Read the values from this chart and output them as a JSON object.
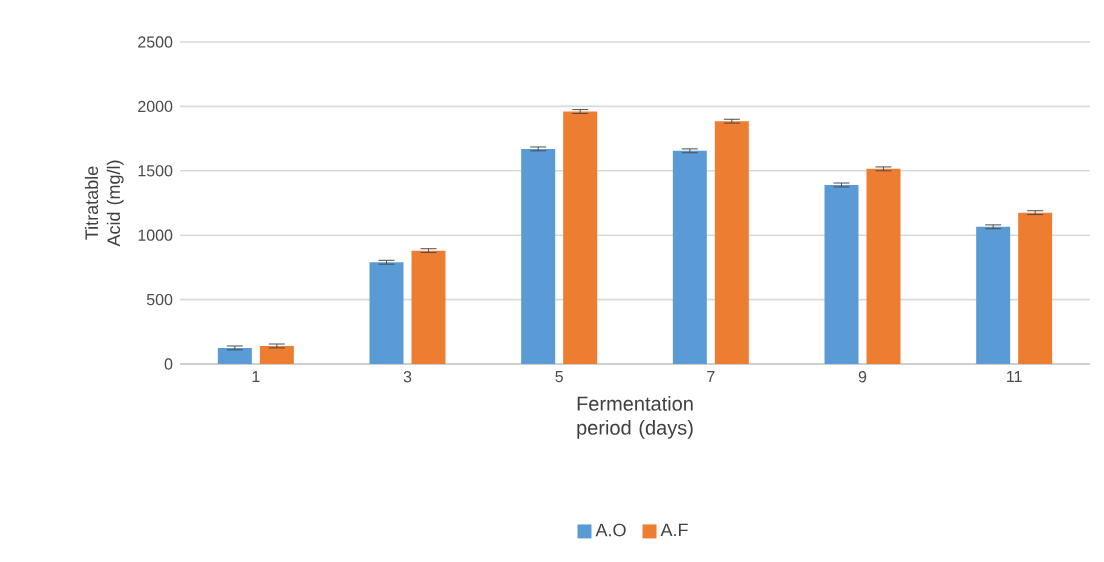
{
  "chart_data": {
    "type": "bar",
    "xlabel": "Fermentation period (days)",
    "ylabel": "Titratable Acid (mg/l)",
    "categories": [
      "1",
      "3",
      "5",
      "7",
      "9",
      "11"
    ],
    "series": [
      {
        "name": "A.O",
        "color": "#5b9bd5",
        "values": [
          125,
          790,
          1670,
          1655,
          1390,
          1065
        ],
        "errors": [
          15,
          15,
          15,
          15,
          15,
          15
        ]
      },
      {
        "name": "A.F",
        "color": "#ed7d31",
        "values": [
          140,
          880,
          1960,
          1885,
          1515,
          1175
        ],
        "errors": [
          15,
          15,
          15,
          15,
          15,
          15
        ]
      }
    ],
    "ylim": [
      0,
      2500
    ],
    "yticks": [
      0,
      500,
      1000,
      1500,
      2000,
      2500
    ],
    "grid": "y",
    "legend": "bottom"
  }
}
